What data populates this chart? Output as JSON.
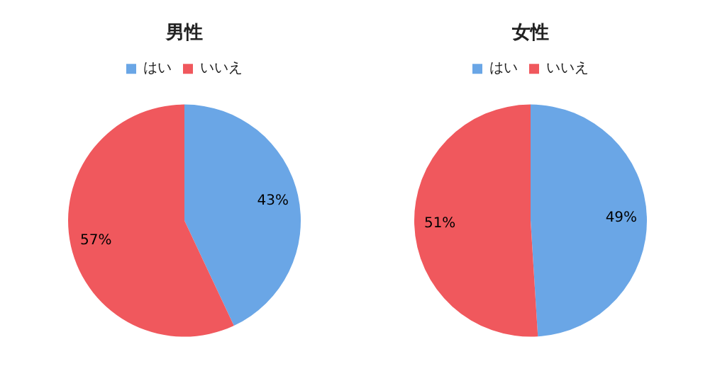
{
  "chart_data": [
    {
      "type": "pie",
      "title": "男性",
      "categories": [
        "はい",
        "いいえ"
      ],
      "values": [
        43,
        57
      ],
      "value_labels": [
        "43%",
        "57%"
      ],
      "colors": [
        "#6aa6e6",
        "#f0585d"
      ],
      "legend": "top"
    },
    {
      "type": "pie",
      "title": "女性",
      "categories": [
        "はい",
        "いいえ"
      ],
      "values": [
        49,
        51
      ],
      "value_labels": [
        "49%",
        "51%"
      ],
      "colors": [
        "#6aa6e6",
        "#f0585d"
      ],
      "legend": "top"
    }
  ]
}
